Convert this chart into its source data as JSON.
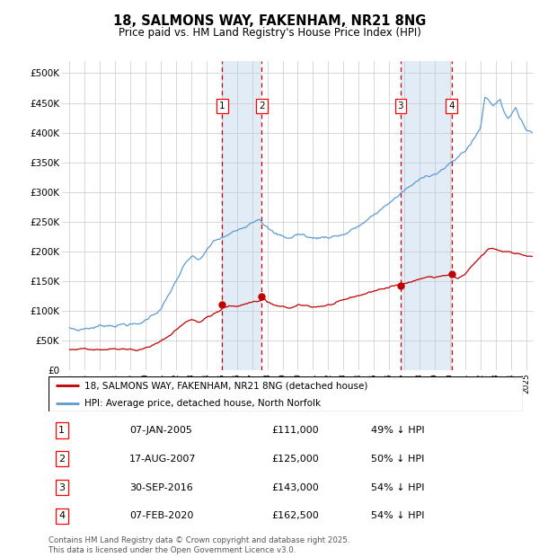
{
  "title": "18, SALMONS WAY, FAKENHAM, NR21 8NG",
  "subtitle": "Price paid vs. HM Land Registry's House Price Index (HPI)",
  "ylabel_ticks": [
    "£0",
    "£50K",
    "£100K",
    "£150K",
    "£200K",
    "£250K",
    "£300K",
    "£350K",
    "£400K",
    "£450K",
    "£500K"
  ],
  "ytick_values": [
    0,
    50000,
    100000,
    150000,
    200000,
    250000,
    300000,
    350000,
    400000,
    450000,
    500000
  ],
  "ylim": [
    0,
    520000
  ],
  "hpi_color": "#5b9bd5",
  "price_color": "#c00000",
  "vline_color": "#cc0000",
  "legend_label_red": "18, SALMONS WAY, FAKENHAM, NR21 8NG (detached house)",
  "legend_label_blue": "HPI: Average price, detached house, North Norfolk",
  "transactions": [
    {
      "num": 1,
      "date_num": 2005.03,
      "price": 111000,
      "label": "07-JAN-2005",
      "price_label": "£111,000",
      "hpi_label": "49% ↓ HPI"
    },
    {
      "num": 2,
      "date_num": 2007.63,
      "price": 125000,
      "label": "17-AUG-2007",
      "price_label": "£125,000",
      "hpi_label": "50% ↓ HPI"
    },
    {
      "num": 3,
      "date_num": 2016.75,
      "price": 143000,
      "label": "30-SEP-2016",
      "price_label": "£143,000",
      "hpi_label": "54% ↓ HPI"
    },
    {
      "num": 4,
      "date_num": 2020.1,
      "price": 162500,
      "label": "07-FEB-2020",
      "price_label": "£162,500",
      "hpi_label": "54% ↓ HPI"
    }
  ],
  "xlim": [
    1994.5,
    2025.5
  ],
  "xtick_years": [
    1995,
    1996,
    1997,
    1998,
    1999,
    2000,
    2001,
    2002,
    2003,
    2004,
    2005,
    2006,
    2007,
    2008,
    2009,
    2010,
    2011,
    2012,
    2013,
    2014,
    2015,
    2016,
    2017,
    2018,
    2019,
    2020,
    2021,
    2022,
    2023,
    2024,
    2025
  ],
  "footnote": "Contains HM Land Registry data © Crown copyright and database right 2025.\nThis data is licensed under the Open Government Licence v3.0.",
  "background_color": "#ffffff",
  "plot_bg_color": "#ffffff",
  "grid_color": "#c8c8c8"
}
